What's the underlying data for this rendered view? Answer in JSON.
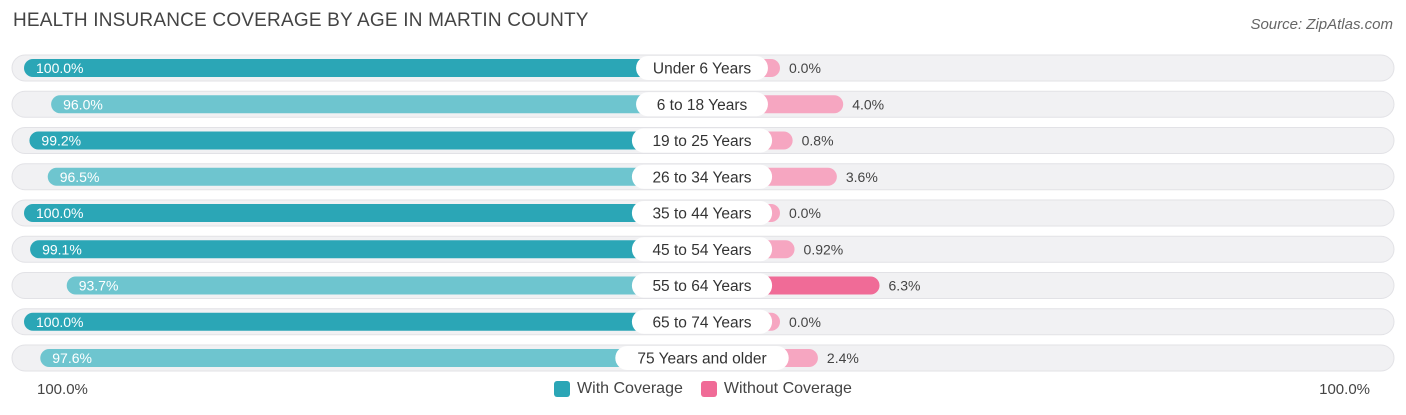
{
  "header": {
    "title": "HEALTH INSURANCE COVERAGE BY AGE IN MARTIN COUNTY",
    "source": "Source: ZipAtlas.com"
  },
  "colors": {
    "with_strong": "#2ba6b6",
    "with_light": "#6ec5cf",
    "without_strong": "#f06b97",
    "without_light": "#f6a6c1",
    "row_bg": "#f1f1f3"
  },
  "axis": {
    "left_label": "100.0%",
    "right_label": "100.0%"
  },
  "legend": {
    "with_label": "With Coverage",
    "without_label": "Without Coverage"
  },
  "chart_data": {
    "type": "bar",
    "orientation": "horizontal-diverging",
    "categories": [
      "Under 6 Years",
      "6 to 18 Years",
      "19 to 25 Years",
      "26 to 34 Years",
      "35 to 44 Years",
      "45 to 54 Years",
      "55 to 64 Years",
      "65 to 74 Years",
      "75 Years and older"
    ],
    "series": [
      {
        "name": "With Coverage",
        "values": [
          100.0,
          96.0,
          99.2,
          96.5,
          100.0,
          99.1,
          93.7,
          100.0,
          97.6
        ],
        "labels": [
          "100.0%",
          "96.0%",
          "99.2%",
          "96.5%",
          "100.0%",
          "99.1%",
          "93.7%",
          "100.0%",
          "97.6%"
        ]
      },
      {
        "name": "Without Coverage",
        "values": [
          0.0,
          4.0,
          0.8,
          3.6,
          0.0,
          0.92,
          6.3,
          0.0,
          2.4
        ],
        "labels": [
          "0.0%",
          "4.0%",
          "0.8%",
          "3.6%",
          "0.0%",
          "0.92%",
          "6.3%",
          "0.0%",
          "2.4%"
        ]
      }
    ],
    "title": "HEALTH INSURANCE COVERAGE BY AGE IN MARTIN COUNTY",
    "xlim": [
      0,
      100
    ],
    "legend_position": "bottom-center"
  }
}
